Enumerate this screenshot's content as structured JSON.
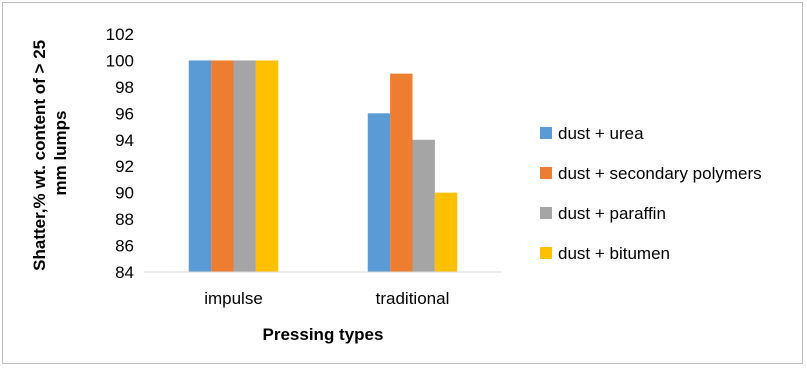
{
  "chart_data": {
    "type": "bar",
    "categories": [
      "impulse",
      "traditional"
    ],
    "series": [
      {
        "name": "dust + urea",
        "values": [
          100,
          96
        ],
        "color": "#5b9bd5"
      },
      {
        "name": "dust + secondary polymers",
        "values": [
          100,
          99
        ],
        "color": "#ed7d31"
      },
      {
        "name": "dust + paraffin",
        "values": [
          100,
          94
        ],
        "color": "#a5a5a5"
      },
      {
        "name": "dust + bitumen",
        "values": [
          100,
          90
        ],
        "color": "#ffc000"
      }
    ],
    "xlabel": "Pressing types",
    "ylabel_lines": [
      "Shatter,% wt. content of > 25",
      "mm lumps"
    ],
    "ylim": [
      84,
      102
    ],
    "yticks": [
      84,
      86,
      88,
      90,
      92,
      94,
      96,
      98,
      100,
      102
    ],
    "grid": false,
    "legend": "right",
    "gap_width_fraction": 0.25
  }
}
